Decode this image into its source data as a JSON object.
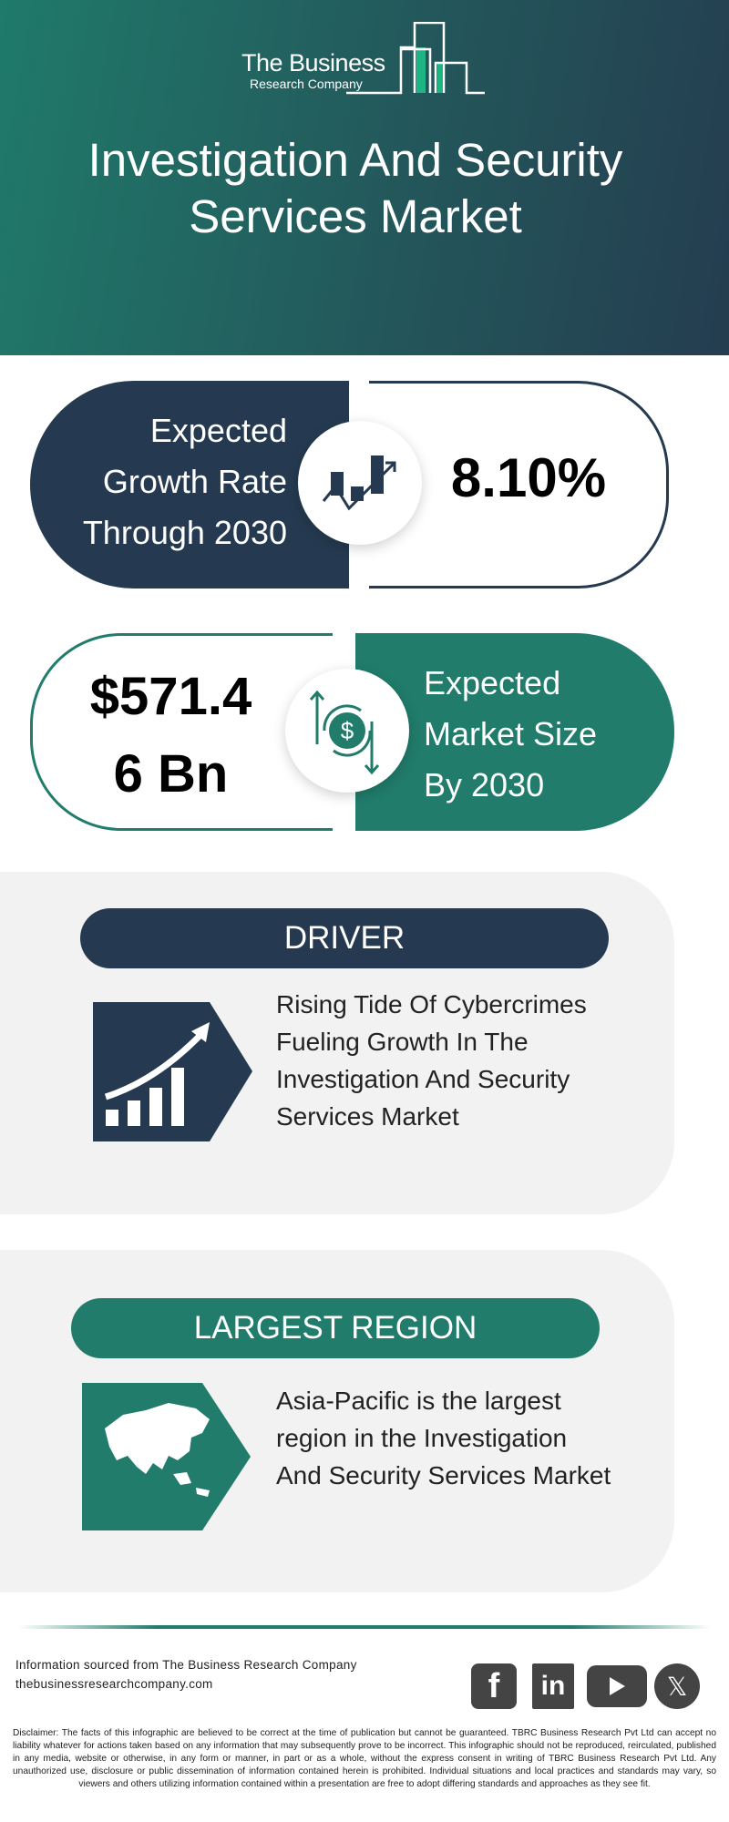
{
  "brand": {
    "line1": "The Business",
    "line2": "Research Company"
  },
  "title": {
    "line1": "Investigation And Security",
    "line2": "Services Market"
  },
  "growth": {
    "label_lines": [
      "Expected",
      "Growth Rate",
      "Through 2030"
    ],
    "value": "8.10%",
    "icon": "growth-chart-icon"
  },
  "market_size": {
    "value_lines": [
      "$571.4",
      "6 Bn"
    ],
    "label_lines": [
      "Expected",
      "Market Size",
      "By 2030"
    ],
    "icon": "dollar-cycle-icon"
  },
  "driver": {
    "heading": "DRIVER",
    "text_lines": [
      "Rising Tide Of Cybercrimes",
      "Fueling Growth In The",
      "Investigation And Security",
      "Services Market"
    ],
    "icon": "rising-bars-icon"
  },
  "region": {
    "heading": "LARGEST REGION",
    "text_lines": [
      "Asia-Pacific is the largest",
      "region in the Investigation",
      "And Security Services Market"
    ],
    "icon": "asia-map-icon"
  },
  "footer": {
    "source": "Information sourced from The Business Research Company",
    "website": "thebusinessresearchcompany.com",
    "social": [
      "facebook",
      "linkedin",
      "youtube",
      "x"
    ]
  },
  "disclaimer": "Disclaimer: The facts of this infographic are believed to be correct at the time of publication but cannot be guaranteed. TBRC Business Research Pvt Ltd can accept no liability whatever for actions taken based on any information that may subsequently prove to be incorrect. This infographic should not be reproduced, reirculated, published in any media, website or otherwise, in any form or manner, in part or as a whole, without the express consent in writing of TBRC Business Research Pvt Ltd. Any unauthorized use, disclosure or public dissemination of information contained herein is prohibited. Individual situations and local practices and standards may vary, so viewers and others utilizing information contained within a presentation are free to adopt differing standards and approaches as they see fit.",
  "colors": {
    "navy": "#253a50",
    "teal": "#217c6b",
    "accent_green": "#1db584",
    "panel": "#f2f2f2"
  }
}
